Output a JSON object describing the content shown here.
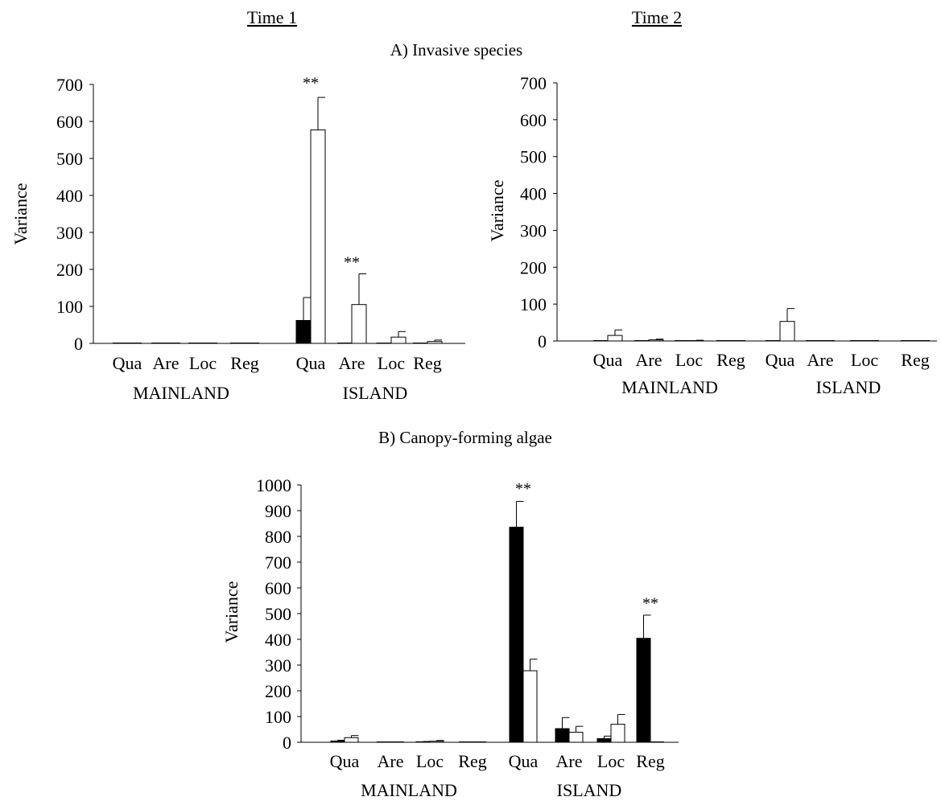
{
  "headers": {
    "time1": "Time 1",
    "time2": "Time 2"
  },
  "sections": {
    "a": "A) Invasive species",
    "b": "B) Canopy-forming algae"
  },
  "colors": {
    "black_bar": "#000000",
    "white_bar": "#ffffff",
    "outline": "#000000"
  },
  "chart_data": [
    {
      "id": "a1",
      "type": "bar",
      "ylabel": "Variance",
      "ylim": [
        0,
        700
      ],
      "yticks": [
        0,
        100,
        200,
        300,
        400,
        500,
        600,
        700
      ],
      "categories": [
        "Qua",
        "Are",
        "Loc",
        "Reg",
        "Qua",
        "Are",
        "Loc",
        "Reg"
      ],
      "groups": [
        "MAINLAND",
        "ISLAND"
      ],
      "series": [
        {
          "values": [
            0,
            0,
            0,
            0,
            62,
            0,
            1,
            0
          ],
          "errors": [
            0,
            0,
            0,
            0,
            62,
            0,
            0,
            0
          ]
        },
        {
          "values": [
            0,
            0,
            0,
            0,
            577,
            105,
            17,
            5
          ],
          "errors": [
            0,
            0,
            0,
            0,
            88,
            83,
            15,
            4
          ]
        }
      ],
      "annotations": [
        {
          "label": "**",
          "category_index": 4,
          "value": 690
        },
        {
          "label": "**",
          "category_index": 5,
          "value": 205
        }
      ]
    },
    {
      "id": "a2",
      "type": "bar",
      "ylabel": "Variance",
      "ylim": [
        0,
        700
      ],
      "yticks": [
        0,
        100,
        200,
        300,
        400,
        500,
        600,
        700
      ],
      "categories": [
        "Qua",
        "Are",
        "Loc",
        "Reg",
        "Qua",
        "Are",
        "Loc",
        "Reg"
      ],
      "groups": [
        "MAINLAND",
        "ISLAND"
      ],
      "series": [
        {
          "values": [
            0,
            0,
            0,
            0,
            0,
            0,
            0,
            0
          ],
          "errors": [
            0,
            0,
            0,
            0,
            0,
            0,
            0,
            0
          ]
        },
        {
          "values": [
            15,
            3,
            1,
            0,
            53,
            0,
            0,
            0
          ],
          "errors": [
            15,
            2,
            1,
            0,
            35,
            0,
            0,
            0
          ]
        }
      ],
      "annotations": []
    },
    {
      "id": "b",
      "type": "bar",
      "ylabel": "Variance",
      "ylim": [
        0,
        1000
      ],
      "yticks": [
        0,
        100,
        200,
        300,
        400,
        500,
        600,
        700,
        800,
        900,
        1000
      ],
      "categories": [
        "Qua",
        "Are",
        "Loc",
        "Reg",
        "Qua",
        "Are",
        "Loc",
        "Reg"
      ],
      "groups": [
        "MAINLAND",
        "ISLAND"
      ],
      "series": [
        {
          "values": [
            5,
            0,
            2,
            0,
            836,
            53,
            14,
            404
          ],
          "errors": [
            3,
            0,
            1,
            0,
            100,
            43,
            10,
            90
          ]
        },
        {
          "values": [
            18,
            0,
            4,
            0,
            278,
            39,
            70,
            0
          ],
          "errors": [
            8,
            0,
            3,
            0,
            45,
            23,
            38,
            0
          ]
        }
      ],
      "annotations": [
        {
          "label": "**",
          "category_index": 4,
          "value": 965
        },
        {
          "label": "**",
          "category_index": 7,
          "value": 520
        }
      ]
    }
  ]
}
